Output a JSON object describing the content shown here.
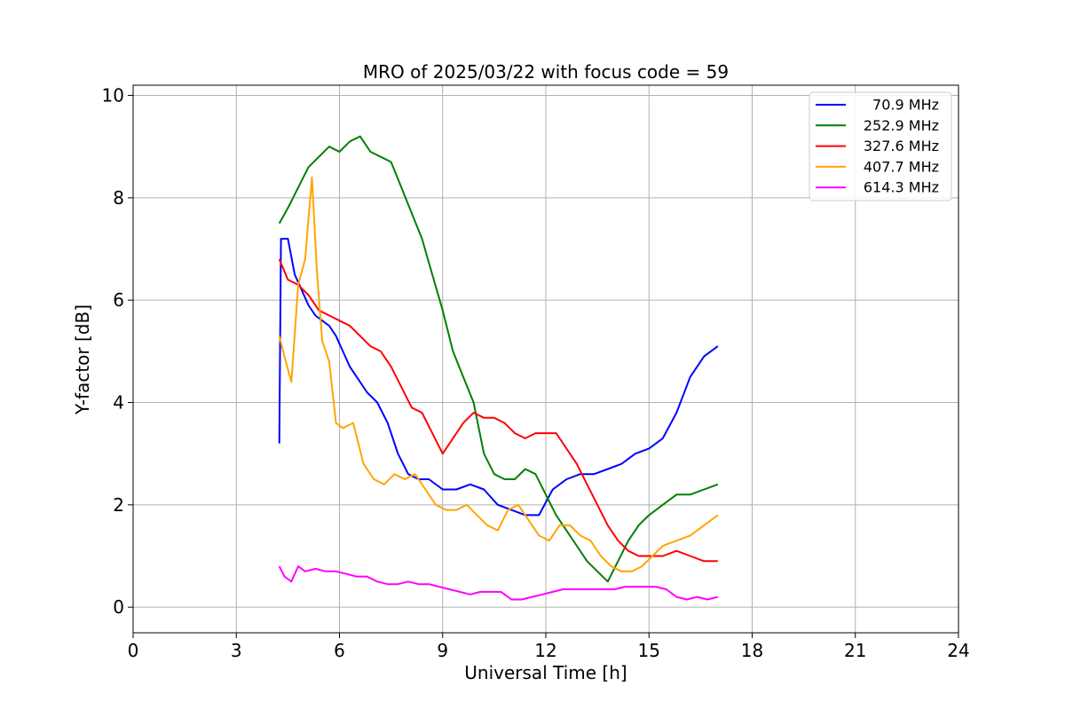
{
  "chart_data": {
    "type": "line",
    "title": "MRO of 2025/03/22 with focus code = 59",
    "xlabel": "Universal Time [h]",
    "ylabel": "Y-factor [dB]",
    "xlim": [
      0,
      24
    ],
    "ylim": [
      -0.5,
      10.2
    ],
    "xticks": [
      0,
      3,
      6,
      9,
      12,
      15,
      18,
      21,
      24
    ],
    "yticks": [
      0,
      2,
      4,
      6,
      8,
      10
    ],
    "grid": true,
    "legend_position": "top-right",
    "series": [
      {
        "name": "70.9 MHz",
        "color": "#0000ff",
        "x": [
          4.25,
          4.3,
          4.5,
          4.7,
          4.9,
          5.1,
          5.3,
          5.5,
          5.7,
          5.9,
          6.1,
          6.3,
          6.5,
          6.8,
          7.1,
          7.4,
          7.7,
          8.0,
          8.3,
          8.6,
          9.0,
          9.4,
          9.8,
          10.2,
          10.6,
          11.0,
          11.4,
          11.8,
          12.2,
          12.6,
          13.0,
          13.4,
          13.8,
          14.2,
          14.6,
          15.0,
          15.4,
          15.8,
          16.2,
          16.6,
          17.0
        ],
        "y": [
          3.2,
          7.2,
          7.2,
          6.5,
          6.2,
          5.9,
          5.7,
          5.6,
          5.5,
          5.3,
          5.0,
          4.7,
          4.5,
          4.2,
          4.0,
          3.6,
          3.0,
          2.6,
          2.5,
          2.5,
          2.3,
          2.3,
          2.4,
          2.3,
          2.0,
          1.9,
          1.8,
          1.8,
          2.3,
          2.5,
          2.6,
          2.6,
          2.7,
          2.8,
          3.0,
          3.1,
          3.3,
          3.8,
          4.5,
          4.9,
          5.1
        ]
      },
      {
        "name": "252.9 MHz",
        "color": "#008000",
        "x": [
          4.25,
          4.5,
          4.8,
          5.1,
          5.4,
          5.7,
          6.0,
          6.3,
          6.6,
          6.9,
          7.2,
          7.5,
          7.8,
          8.1,
          8.4,
          8.7,
          9.0,
          9.3,
          9.6,
          9.9,
          10.2,
          10.5,
          10.8,
          11.1,
          11.4,
          11.7,
          12.0,
          12.3,
          12.6,
          12.9,
          13.2,
          13.5,
          13.8,
          14.1,
          14.4,
          14.7,
          15.0,
          15.4,
          15.8,
          16.2,
          16.6,
          17.0
        ],
        "y": [
          7.5,
          7.8,
          8.2,
          8.6,
          8.8,
          9.0,
          8.9,
          9.1,
          9.2,
          8.9,
          8.8,
          8.7,
          8.2,
          7.7,
          7.2,
          6.5,
          5.8,
          5.0,
          4.5,
          4.0,
          3.0,
          2.6,
          2.5,
          2.5,
          2.7,
          2.6,
          2.2,
          1.8,
          1.5,
          1.2,
          0.9,
          0.7,
          0.5,
          0.9,
          1.3,
          1.6,
          1.8,
          2.0,
          2.2,
          2.2,
          2.3,
          2.4
        ]
      },
      {
        "name": "327.6 MHz",
        "color": "#ff0000",
        "x": [
          4.25,
          4.5,
          4.8,
          5.1,
          5.4,
          5.7,
          6.0,
          6.3,
          6.6,
          6.9,
          7.2,
          7.5,
          7.8,
          8.1,
          8.4,
          8.7,
          9.0,
          9.3,
          9.6,
          9.9,
          10.2,
          10.5,
          10.8,
          11.1,
          11.4,
          11.7,
          12.0,
          12.3,
          12.6,
          12.9,
          13.2,
          13.5,
          13.8,
          14.1,
          14.4,
          14.7,
          15.0,
          15.4,
          15.8,
          16.2,
          16.6,
          17.0
        ],
        "y": [
          6.8,
          6.4,
          6.3,
          6.1,
          5.8,
          5.7,
          5.6,
          5.5,
          5.3,
          5.1,
          5.0,
          4.7,
          4.3,
          3.9,
          3.8,
          3.4,
          3.0,
          3.3,
          3.6,
          3.8,
          3.7,
          3.7,
          3.6,
          3.4,
          3.3,
          3.4,
          3.4,
          3.4,
          3.1,
          2.8,
          2.4,
          2.0,
          1.6,
          1.3,
          1.1,
          1.0,
          1.0,
          1.0,
          1.1,
          1.0,
          0.9,
          0.9
        ]
      },
      {
        "name": "407.7 MHz",
        "color": "#ffa500",
        "x": [
          4.25,
          4.4,
          4.6,
          4.8,
          5.0,
          5.2,
          5.35,
          5.5,
          5.7,
          5.9,
          6.1,
          6.4,
          6.7,
          7.0,
          7.3,
          7.6,
          7.9,
          8.2,
          8.5,
          8.8,
          9.1,
          9.4,
          9.7,
          10.0,
          10.3,
          10.6,
          10.9,
          11.2,
          11.5,
          11.8,
          12.1,
          12.4,
          12.7,
          13.0,
          13.3,
          13.6,
          13.9,
          14.2,
          14.5,
          14.8,
          15.1,
          15.4,
          15.8,
          16.2,
          16.6,
          17.0
        ],
        "y": [
          5.3,
          4.9,
          4.4,
          6.3,
          6.8,
          8.4,
          6.5,
          5.2,
          4.8,
          3.6,
          3.5,
          3.6,
          2.8,
          2.5,
          2.4,
          2.6,
          2.5,
          2.6,
          2.3,
          2.0,
          1.9,
          1.9,
          2.0,
          1.8,
          1.6,
          1.5,
          1.9,
          2.0,
          1.7,
          1.4,
          1.3,
          1.6,
          1.6,
          1.4,
          1.3,
          1.0,
          0.8,
          0.7,
          0.7,
          0.8,
          1.0,
          1.2,
          1.3,
          1.4,
          1.6,
          1.8
        ]
      },
      {
        "name": "614.3 MHz",
        "color": "#ff00ff",
        "x": [
          4.25,
          4.4,
          4.6,
          4.8,
          5.0,
          5.3,
          5.6,
          5.9,
          6.2,
          6.5,
          6.8,
          7.1,
          7.4,
          7.7,
          8.0,
          8.3,
          8.6,
          8.9,
          9.2,
          9.5,
          9.8,
          10.1,
          10.4,
          10.7,
          11.0,
          11.3,
          11.6,
          11.9,
          12.2,
          12.5,
          12.8,
          13.1,
          13.4,
          13.7,
          14.0,
          14.3,
          14.6,
          14.9,
          15.2,
          15.5,
          15.8,
          16.1,
          16.4,
          16.7,
          17.0
        ],
        "y": [
          0.8,
          0.6,
          0.5,
          0.8,
          0.7,
          0.75,
          0.7,
          0.7,
          0.65,
          0.6,
          0.6,
          0.5,
          0.45,
          0.45,
          0.5,
          0.45,
          0.45,
          0.4,
          0.35,
          0.3,
          0.25,
          0.3,
          0.3,
          0.3,
          0.15,
          0.15,
          0.2,
          0.25,
          0.3,
          0.35,
          0.35,
          0.35,
          0.35,
          0.35,
          0.35,
          0.4,
          0.4,
          0.4,
          0.4,
          0.35,
          0.2,
          0.15,
          0.2,
          0.15,
          0.2
        ]
      }
    ]
  }
}
